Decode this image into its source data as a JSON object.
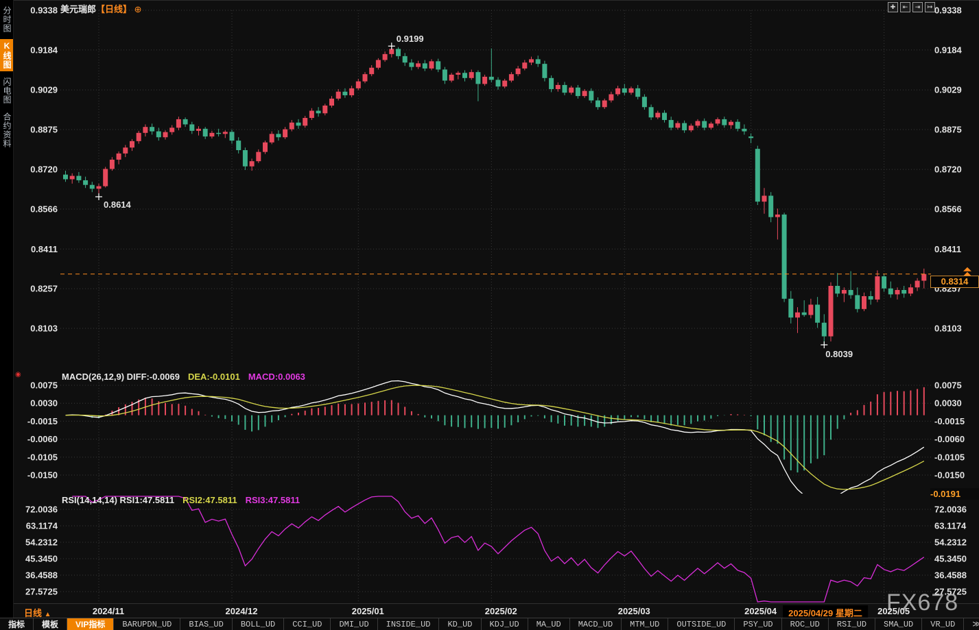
{
  "window_title": {
    "symbol": "美元瑞郎",
    "period": "【日线】",
    "plus_icon": "⊕"
  },
  "sidebar": {
    "items": [
      {
        "label": "分时图",
        "active": false
      },
      {
        "label": "K线图",
        "active": true
      },
      {
        "label": "闪电图",
        "active": false
      },
      {
        "label": "合约资料",
        "active": false
      }
    ]
  },
  "toolbar": {
    "icons": [
      {
        "name": "crosshair-icon",
        "glyph": "✚"
      },
      {
        "name": "scale-compress-icon",
        "glyph": "⇤"
      },
      {
        "name": "scale-expand-icon",
        "glyph": "⇥"
      },
      {
        "name": "pan-right-icon",
        "glyph": "↦"
      }
    ]
  },
  "colors": {
    "up": "#e7495c",
    "down": "#3eb08a",
    "accent": "#f08200",
    "orange_text": "#ff8a1e",
    "diff_line": "#ffffff",
    "dea_line": "#d6d64a",
    "rsi_line": "#d92ed9",
    "grid": "#3a3a3a",
    "axis_text": "#e3e3e3"
  },
  "macd_legend": {
    "name_diff": "MACD(26,12,9) DIFF:-0.0069",
    "dea": "DEA:-0.0101",
    "macd": "MACD:0.0063"
  },
  "rsi_legend": {
    "name_rsi1": "RSI(14,14,14) RSI1:47.5811",
    "rsi2": "RSI2:47.5811",
    "rsi3": "RSI3:47.5811"
  },
  "price_marker": {
    "last_price_label": "0.8314",
    "macd_min_label": "-0.0191"
  },
  "annotations": {
    "high_label": "0.9199",
    "low1_label": "0.8614",
    "low2_label": "0.8039"
  },
  "bottom": {
    "period_label": "日线",
    "period_arrow": "▲",
    "selected_date": "2025/04/29 星期二"
  },
  "watermark": "FX678",
  "tabs": [
    {
      "label": "指标",
      "cn": true
    },
    {
      "label": "模板",
      "cn": true
    },
    {
      "label": "VIP指标",
      "cn": true,
      "active": true
    },
    {
      "label": "BARUPDN_UD"
    },
    {
      "label": "BIAS_UD"
    },
    {
      "label": "BOLL_UD"
    },
    {
      "label": "CCI_UD"
    },
    {
      "label": "DMI_UD"
    },
    {
      "label": "INSIDE_UD"
    },
    {
      "label": "KD_UD"
    },
    {
      "label": "KDJ_UD"
    },
    {
      "label": "MA_UD"
    },
    {
      "label": "MACD_UD"
    },
    {
      "label": "MTM_UD"
    },
    {
      "label": "OUTSIDE_UD"
    },
    {
      "label": "PSY_UD"
    },
    {
      "label": "ROC_UD"
    },
    {
      "label": "RSI_UD"
    },
    {
      "label": "SMA_UD"
    },
    {
      "label": "VR_UD"
    },
    {
      "label": "≫"
    }
  ],
  "chart_data": [
    {
      "type": "candlestick",
      "symbol": "美元瑞郎",
      "period": "日线",
      "y_ticks": [
        0.9338,
        0.9184,
        0.9029,
        0.8875,
        0.872,
        0.8566,
        0.8411,
        0.8257,
        0.8103
      ],
      "month_starts": [
        {
          "index": 5,
          "label": "2024/11"
        },
        {
          "index": 25,
          "label": "2024/12"
        },
        {
          "index": 44,
          "label": "2025/01"
        },
        {
          "index": 64,
          "label": "2025/02"
        },
        {
          "index": 84,
          "label": "2025/03"
        },
        {
          "index": 103,
          "label": "2025/04"
        },
        {
          "index": 123,
          "label": "2025/05"
        }
      ],
      "marked_high": {
        "index": 49,
        "value": 0.9199
      },
      "marked_lows": [
        {
          "index": 5,
          "value": 0.8614
        },
        {
          "index": 114,
          "value": 0.8039
        }
      ],
      "last_price": 0.8314,
      "ohlc": [
        [
          0.87,
          0.8715,
          0.8672,
          0.8682
        ],
        [
          0.8682,
          0.8705,
          0.8665,
          0.8695
        ],
        [
          0.8695,
          0.871,
          0.8668,
          0.8678
        ],
        [
          0.8678,
          0.8692,
          0.8648,
          0.866
        ],
        [
          0.866,
          0.8672,
          0.8632,
          0.8645
        ],
        [
          0.8645,
          0.8665,
          0.8614,
          0.8655
        ],
        [
          0.8655,
          0.873,
          0.865,
          0.8722
        ],
        [
          0.8722,
          0.8768,
          0.8715,
          0.8758
        ],
        [
          0.8758,
          0.879,
          0.874,
          0.8782
        ],
        [
          0.8782,
          0.8815,
          0.8768,
          0.8805
        ],
        [
          0.8805,
          0.8838,
          0.8792,
          0.883
        ],
        [
          0.883,
          0.887,
          0.882,
          0.8862
        ],
        [
          0.8862,
          0.8895,
          0.8848,
          0.8885
        ],
        [
          0.8885,
          0.8898,
          0.8855,
          0.8868
        ],
        [
          0.8868,
          0.8882,
          0.8832,
          0.8845
        ],
        [
          0.8845,
          0.8872,
          0.8836,
          0.8865
        ],
        [
          0.8865,
          0.8892,
          0.8855,
          0.8882
        ],
        [
          0.8882,
          0.8925,
          0.8872,
          0.8915
        ],
        [
          0.8915,
          0.8922,
          0.8885,
          0.8895
        ],
        [
          0.8895,
          0.8905,
          0.8858,
          0.887
        ],
        [
          0.887,
          0.8888,
          0.8852,
          0.8878
        ],
        [
          0.8878,
          0.8885,
          0.8838,
          0.8848
        ],
        [
          0.8848,
          0.887,
          0.884,
          0.8862
        ],
        [
          0.8862,
          0.8878,
          0.8848,
          0.8858
        ],
        [
          0.8858,
          0.8872,
          0.8842,
          0.8866
        ],
        [
          0.8866,
          0.8875,
          0.882,
          0.8832
        ],
        [
          0.8832,
          0.8845,
          0.8782,
          0.8795
        ],
        [
          0.8795,
          0.8805,
          0.8718,
          0.8732
        ],
        [
          0.8732,
          0.8762,
          0.8715,
          0.8752
        ],
        [
          0.8752,
          0.8798,
          0.8745,
          0.8788
        ],
        [
          0.8788,
          0.8832,
          0.878,
          0.8825
        ],
        [
          0.8825,
          0.8868,
          0.8818,
          0.8858
        ],
        [
          0.8858,
          0.8872,
          0.8832,
          0.8845
        ],
        [
          0.8845,
          0.8885,
          0.8838,
          0.8876
        ],
        [
          0.8876,
          0.8912,
          0.8868,
          0.8902
        ],
        [
          0.8902,
          0.8915,
          0.8878,
          0.889
        ],
        [
          0.889,
          0.8928,
          0.8882,
          0.892
        ],
        [
          0.892,
          0.8958,
          0.8912,
          0.8948
        ],
        [
          0.8948,
          0.8962,
          0.8925,
          0.8938
        ],
        [
          0.8938,
          0.8975,
          0.893,
          0.8968
        ],
        [
          0.8968,
          0.9005,
          0.896,
          0.8995
        ],
        [
          0.8995,
          0.9032,
          0.8988,
          0.9022
        ],
        [
          0.9022,
          0.9035,
          0.8998,
          0.9008
        ],
        [
          0.9008,
          0.9045,
          0.9,
          0.9035
        ],
        [
          0.9035,
          0.9072,
          0.9028,
          0.9062
        ],
        [
          0.9062,
          0.9098,
          0.9055,
          0.909
        ],
        [
          0.909,
          0.9125,
          0.9082,
          0.9115
        ],
        [
          0.9115,
          0.9152,
          0.9108,
          0.9145
        ],
        [
          0.9145,
          0.9178,
          0.9138,
          0.9168
        ],
        [
          0.9168,
          0.9199,
          0.9155,
          0.9188
        ],
        [
          0.9188,
          0.9195,
          0.9148,
          0.916
        ],
        [
          0.916,
          0.9172,
          0.9122,
          0.9135
        ],
        [
          0.9135,
          0.9148,
          0.9105,
          0.9118
        ],
        [
          0.9118,
          0.9142,
          0.911,
          0.9132
        ],
        [
          0.9132,
          0.9145,
          0.9102,
          0.9112
        ],
        [
          0.9112,
          0.9148,
          0.9105,
          0.914
        ],
        [
          0.914,
          0.915,
          0.9098,
          0.9108
        ],
        [
          0.9108,
          0.9118,
          0.9052,
          0.9065
        ],
        [
          0.9065,
          0.9095,
          0.9058,
          0.9088
        ],
        [
          0.9088,
          0.9102,
          0.907,
          0.9095
        ],
        [
          0.9095,
          0.9105,
          0.9062,
          0.9075
        ],
        [
          0.9075,
          0.9108,
          0.9068,
          0.9098
        ],
        [
          0.9098,
          0.9105,
          0.8985,
          0.9052
        ],
        [
          0.9052,
          0.9088,
          0.9045,
          0.908
        ],
        [
          0.908,
          0.919,
          0.9058,
          0.9068
        ],
        [
          0.9068,
          0.9078,
          0.903,
          0.9042
        ],
        [
          0.9042,
          0.9072,
          0.9035,
          0.9065
        ],
        [
          0.9065,
          0.9098,
          0.9058,
          0.909
        ],
        [
          0.909,
          0.9122,
          0.9082,
          0.9112
        ],
        [
          0.9112,
          0.9145,
          0.9105,
          0.9135
        ],
        [
          0.9135,
          0.9158,
          0.9125,
          0.9148
        ],
        [
          0.9148,
          0.9162,
          0.9118,
          0.913
        ],
        [
          0.913,
          0.9142,
          0.9062,
          0.9075
        ],
        [
          0.9075,
          0.9085,
          0.902,
          0.9032
        ],
        [
          0.9032,
          0.9058,
          0.9022,
          0.9048
        ],
        [
          0.9048,
          0.906,
          0.9008,
          0.9018
        ],
        [
          0.9018,
          0.9045,
          0.901,
          0.9038
        ],
        [
          0.9038,
          0.9048,
          0.8995,
          0.9005
        ],
        [
          0.9005,
          0.9032,
          0.8998,
          0.9025
        ],
        [
          0.9025,
          0.9035,
          0.8978,
          0.8988
        ],
        [
          0.8988,
          0.9,
          0.8952,
          0.8962
        ],
        [
          0.8962,
          0.8995,
          0.8955,
          0.8988
        ],
        [
          0.8988,
          0.9022,
          0.898,
          0.9012
        ],
        [
          0.9012,
          0.9045,
          0.9005,
          0.9035
        ],
        [
          0.9035,
          0.9052,
          0.9008,
          0.9018
        ],
        [
          0.9018,
          0.9042,
          0.901,
          0.9035
        ],
        [
          0.9035,
          0.9048,
          0.8992,
          0.9002
        ],
        [
          0.9002,
          0.9012,
          0.8952,
          0.8962
        ],
        [
          0.8962,
          0.8972,
          0.8912,
          0.8922
        ],
        [
          0.8922,
          0.8948,
          0.8915,
          0.894
        ],
        [
          0.894,
          0.895,
          0.8902,
          0.8912
        ],
        [
          0.8912,
          0.8925,
          0.8872,
          0.8882
        ],
        [
          0.8882,
          0.8908,
          0.8875,
          0.89
        ],
        [
          0.89,
          0.891,
          0.8862,
          0.8872
        ],
        [
          0.8872,
          0.8898,
          0.8865,
          0.889
        ],
        [
          0.889,
          0.8915,
          0.8882,
          0.8908
        ],
        [
          0.8908,
          0.8918,
          0.8872,
          0.8882
        ],
        [
          0.8882,
          0.8905,
          0.8875,
          0.8898
        ],
        [
          0.8898,
          0.8922,
          0.889,
          0.8915
        ],
        [
          0.8915,
          0.8925,
          0.8882,
          0.8892
        ],
        [
          0.8892,
          0.8912,
          0.8878,
          0.8905
        ],
        [
          0.8905,
          0.8915,
          0.8868,
          0.8878
        ],
        [
          0.8878,
          0.8895,
          0.8855,
          0.8868
        ],
        [
          0.8848,
          0.886,
          0.8822,
          0.8842
        ],
        [
          0.88,
          0.8812,
          0.8582,
          0.8595
        ],
        [
          0.8595,
          0.8648,
          0.8548,
          0.8618
        ],
        [
          0.8618,
          0.8632,
          0.8515,
          0.8535
        ],
        [
          0.8535,
          0.8568,
          0.8448,
          0.8545
        ],
        [
          0.8545,
          0.8552,
          0.8205,
          0.8218
        ],
        [
          0.8218,
          0.8248,
          0.8122,
          0.8145
        ],
        [
          0.8145,
          0.8185,
          0.8085,
          0.8165
        ],
        [
          0.8165,
          0.8212,
          0.8148,
          0.8155
        ],
        [
          0.8155,
          0.8218,
          0.8142,
          0.8195
        ],
        [
          0.8195,
          0.8225,
          0.8105,
          0.8125
        ],
        [
          0.8125,
          0.8158,
          0.8039,
          0.8072
        ],
        [
          0.8072,
          0.8282,
          0.8052,
          0.8268
        ],
        [
          0.8268,
          0.8318,
          0.8225,
          0.8238
        ],
        [
          0.8238,
          0.8262,
          0.8205,
          0.8252
        ],
        [
          0.8252,
          0.8325,
          0.8218,
          0.8232
        ],
        [
          0.8232,
          0.8262,
          0.8165,
          0.8178
        ],
        [
          0.8178,
          0.8242,
          0.817,
          0.8228
        ],
        [
          0.8228,
          0.8248,
          0.8195,
          0.8215
        ],
        [
          0.8215,
          0.8328,
          0.8205,
          0.8305
        ],
        [
          0.8305,
          0.8315,
          0.8245,
          0.8258
        ],
        [
          0.8258,
          0.8285,
          0.8222,
          0.8235
        ],
        [
          0.8235,
          0.8262,
          0.8215,
          0.8252
        ],
        [
          0.8252,
          0.8268,
          0.8222,
          0.8238
        ],
        [
          0.8238,
          0.8275,
          0.8228,
          0.8262
        ],
        [
          0.8262,
          0.8298,
          0.8248,
          0.8288
        ],
        [
          0.8288,
          0.8335,
          0.8258,
          0.8314
        ]
      ]
    },
    {
      "type": "macd",
      "params": "(26,12,9)",
      "diff": -0.0069,
      "dea": -0.0101,
      "macd": 0.0063,
      "y_ticks": [
        0.0075,
        0.003,
        -0.0015,
        -0.006,
        -0.0105,
        -0.015
      ],
      "min_label": -0.0191,
      "note": "DIFF/DEA/histogram computed from candlestick closes with EMA(12,26,9)"
    },
    {
      "type": "rsi",
      "params": "(14,14,14)",
      "rsi1": 47.5811,
      "rsi2": 47.5811,
      "rsi3": 47.5811,
      "y_ticks": [
        72.0036,
        63.1174,
        54.2312,
        45.345,
        36.4588,
        27.5725
      ],
      "note": "RSI(14) computed from candlestick closes; three lines identical"
    }
  ]
}
